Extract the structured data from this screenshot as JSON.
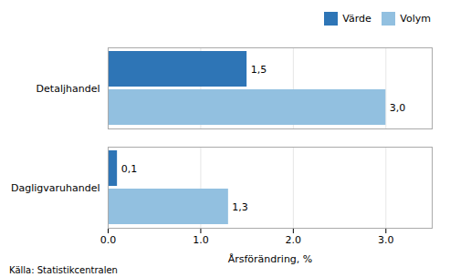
{
  "chart_data": {
    "type": "bar",
    "orientation": "horizontal",
    "categories": [
      "Dagligvaruhandel",
      "Detaljhandel"
    ],
    "series": [
      {
        "name": "Värde",
        "color": "#2E75B6",
        "values": [
          0.1,
          1.5
        ],
        "value_labels": [
          "0,1",
          "1,5"
        ]
      },
      {
        "name": "Volym",
        "color": "#92C0E0",
        "values": [
          1.3,
          3.0
        ],
        "value_labels": [
          "1,3",
          "3,0"
        ]
      }
    ],
    "xlabel": "Årsförändring, %",
    "xlim": [
      0,
      3.5
    ],
    "xticks": [
      0,
      1,
      2,
      3
    ],
    "grid": true,
    "legend": "upper right",
    "data_labels": true,
    "annotations": [
      "Källa: Statistikcentralen"
    ]
  }
}
